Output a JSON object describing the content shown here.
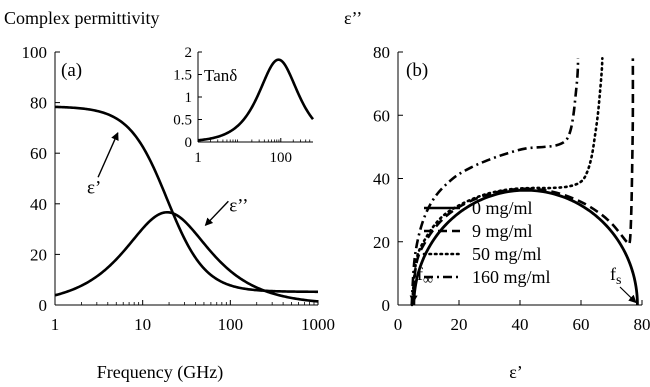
{
  "chart_data": [
    {
      "panel": "(a)",
      "type": "line",
      "title": "Complex permittivity",
      "xlabel": "Frequency (GHz)",
      "ylabel": "",
      "x_scale": "log",
      "xlim": [
        1,
        1000
      ],
      "ylim": [
        0,
        100
      ],
      "x_ticks": [
        "1",
        "10",
        "100",
        "1000"
      ],
      "y_ticks": [
        "0",
        "20",
        "40",
        "60",
        "80",
        "100"
      ],
      "grid": false,
      "debye": {
        "eps_s": 78.5,
        "eps_inf": 5.2,
        "f_relax_ghz": 19
      },
      "series": [
        {
          "name": "ε’",
          "x": [
            1,
            2,
            3,
            5,
            7,
            10,
            15,
            20,
            30,
            50,
            70,
            100,
            200,
            300,
            500,
            700,
            1000
          ],
          "y": [
            78.3,
            77.1,
            75.2,
            69.4,
            62.5,
            52.8,
            40.9,
            33.4,
            22.0,
            12.3,
            9.1,
            7.0,
            5.9,
            5.6,
            5.4,
            5.3,
            5.3
          ]
        },
        {
          "name": "ε’’",
          "x": [
            1,
            2,
            3,
            5,
            7,
            10,
            15,
            20,
            30,
            50,
            70,
            100,
            200,
            300,
            500,
            700,
            1000
          ],
          "y": [
            3.9,
            7.6,
            11.2,
            17.7,
            23.2,
            29.1,
            34.6,
            36.6,
            34.7,
            26.6,
            21.1,
            15.7,
            7.7,
            5.1,
            3.0,
            2.2,
            1.5
          ]
        }
      ],
      "annotations": [
        "ε’",
        "ε’’"
      ],
      "inset": {
        "type": "line",
        "label": "Tanδ",
        "x_scale": "log",
        "xlim": [
          1,
          600
        ],
        "ylim": [
          0,
          2
        ],
        "x_ticks": [
          "1",
          "100"
        ],
        "y_ticks": [
          "0",
          "0.5",
          "1",
          "1.5",
          "2"
        ],
        "series": [
          {
            "name": "Tanδ",
            "x": [
              1,
              5,
              10,
              20,
              40,
              60,
              80,
              90,
              100,
              150,
              200,
              300,
              400,
              600
            ],
            "y": [
              0.05,
              0.25,
              0.48,
              0.85,
              1.38,
              1.7,
              1.82,
              1.83,
              1.82,
              1.6,
              1.3,
              0.92,
              0.68,
              0.42
            ]
          }
        ]
      }
    },
    {
      "panel": "(b)",
      "type": "line",
      "title": "",
      "xlabel": "ε’",
      "ylabel": "ε’’",
      "xlim": [
        0,
        80
      ],
      "ylim": [
        0,
        80
      ],
      "x_ticks": [
        "0",
        "20",
        "40",
        "60",
        "80"
      ],
      "y_ticks": [
        "0",
        "20",
        "40",
        "60",
        "80"
      ],
      "grid": false,
      "legend_position": "bottom-left",
      "endpoint_labels": {
        "f_inf": "f∞",
        "f_s": "fs"
      },
      "series": [
        {
          "name": "0 mg/ml",
          "line_style": "solid",
          "x": [
            5.2,
            8.0,
            12.0,
            18.0,
            24.0,
            30.0,
            36.0,
            41.8,
            48.0,
            54.0,
            60.0,
            66.0,
            72.0,
            76.0,
            78.5
          ],
          "y": [
            0,
            14.0,
            20.6,
            26.9,
            31.0,
            33.8,
            35.4,
            36.6,
            35.5,
            33.8,
            30.9,
            26.4,
            19.2,
            10.8,
            0
          ]
        },
        {
          "name": "9 mg/ml",
          "line_style": "dashed",
          "x": [
            4.8,
            6.0,
            9.0,
            14.0,
            20.0,
            28.0,
            36.0,
            44.0,
            52.0,
            60.0,
            66.0,
            70.0,
            73.0,
            75.0,
            76.0,
            76.5,
            76.8,
            77.0,
            77.0
          ],
          "y": [
            0,
            13.0,
            20.0,
            26.5,
            31.0,
            34.5,
            36.3,
            36.7,
            35.5,
            32.6,
            29.1,
            25.8,
            22.4,
            20.0,
            20.0,
            30.0,
            45.0,
            60.0,
            78.0
          ]
        },
        {
          "name": "50 mg/ml",
          "line_style": "dotted",
          "x": [
            4.6,
            6.0,
            9.0,
            14.0,
            20.0,
            28.0,
            36.0,
            44.0,
            50.0,
            56.0,
            60.0,
            62.0,
            63.5,
            64.5,
            65.5,
            66.2,
            66.8,
            67.0
          ],
          "y": [
            0,
            14.0,
            21.0,
            27.5,
            31.5,
            34.8,
            36.5,
            37.0,
            37.0,
            37.5,
            39.0,
            42.0,
            47.0,
            53.0,
            60.0,
            67.0,
            74.0,
            78.0
          ]
        },
        {
          "name": "160 mg/ml",
          "line_style": "dash-dot",
          "x": [
            4.5,
            5.5,
            8.0,
            12.0,
            18.0,
            24.0,
            30.0,
            36.0,
            42.0,
            48.0,
            52.0,
            55.0,
            56.5,
            57.5,
            58.2,
            58.8,
            59.0,
            59.0
          ],
          "y": [
            0,
            15.0,
            26.0,
            34.0,
            40.0,
            43.5,
            46.0,
            48.0,
            49.5,
            50.0,
            50.5,
            52.0,
            55.0,
            60.0,
            66.0,
            72.0,
            76.0,
            78.0
          ]
        }
      ]
    }
  ]
}
